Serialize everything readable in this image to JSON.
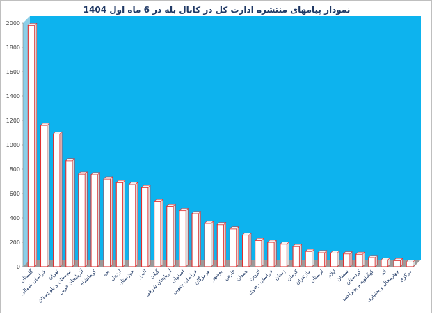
{
  "chart_data": {
    "type": "bar",
    "title": "نمودار پیامهای منتشره ادارت کل در کانال بله در 6 ماه اول 1404",
    "xlabel": "",
    "ylabel": "",
    "ylim": [
      0,
      2000
    ],
    "yticks": [
      0,
      200,
      400,
      600,
      800,
      1000,
      1200,
      1400,
      1600,
      1800,
      2000
    ],
    "grid": false,
    "legend": "none",
    "colors": {
      "plot_bg": "#0DB3EE",
      "bar_fill": "#ffffff",
      "bar_edge": "#e03030",
      "floor": "#9a9a9a",
      "wall_side": "#8ccfe8",
      "title": "#1f3864"
    },
    "categories": [
      "گلستان",
      "خراسان شمالی",
      "تهران",
      "سیستان و بلوچستان",
      "آذربایجان غربی",
      "کرمانشاه",
      "یزد",
      "اردبیل",
      "خوزستان",
      "البرز",
      "گیلان",
      "آذربایجان شرقی",
      "اصفهان",
      "خراسان جنوبی",
      "هرمزگان",
      "بوشهر",
      "فارس",
      "همدان",
      "قزوین",
      "خراسان رضوی",
      "زنجان",
      "کرمان",
      "مازندران",
      "لرستان",
      "ایلام",
      "سمنان",
      "کردستان",
      "کهگیلویه و بویراحمد",
      "قم",
      "چهارمحال و بختیاری",
      "مرکزی"
    ],
    "values": [
      1980,
      1160,
      1090,
      870,
      760,
      755,
      720,
      690,
      675,
      650,
      535,
      495,
      460,
      435,
      355,
      345,
      310,
      260,
      215,
      200,
      185,
      165,
      125,
      115,
      112,
      105,
      102,
      75,
      55,
      50,
      38
    ]
  }
}
